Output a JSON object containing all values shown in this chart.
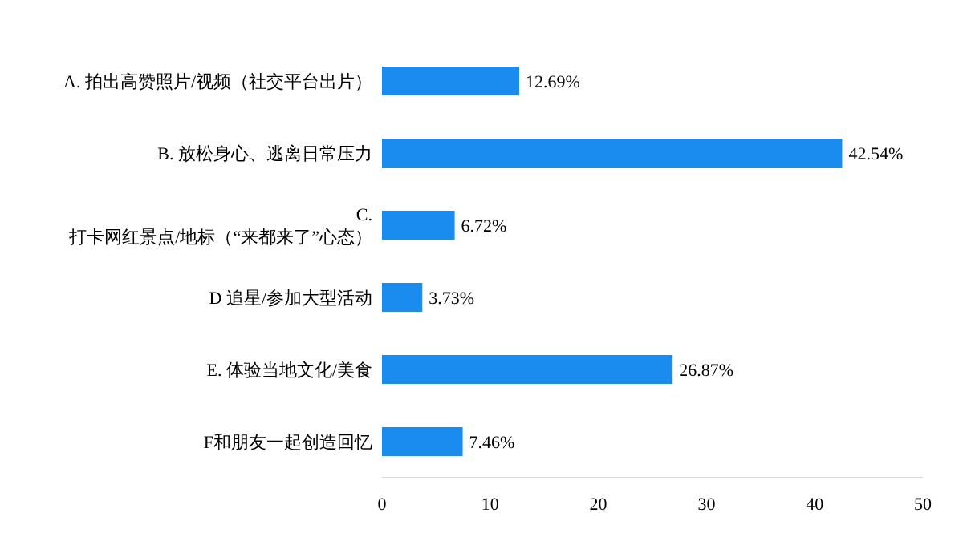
{
  "chart_data": {
    "type": "bar",
    "orientation": "horizontal",
    "categories": [
      "A. 拍出高赞照片/视频（社交平台出片）",
      "B. 放松身心、逃离日常压力",
      "C. 打卡网红景点/地标（“来都来了”心态）",
      "D 追星/参加大型活动",
      "E. 体验当地文化/美食",
      "F和朋友一起创造回忆"
    ],
    "values": [
      12.69,
      42.54,
      6.72,
      3.73,
      26.87,
      7.46
    ],
    "value_labels": [
      "12.69%",
      "42.54%",
      "6.72%",
      "3.73%",
      "26.87%",
      "7.46%"
    ],
    "color": "#1a8cf0",
    "xlim": [
      0,
      50
    ],
    "xticks": [
      0,
      10,
      20,
      30,
      40,
      50
    ],
    "grid": false
  }
}
